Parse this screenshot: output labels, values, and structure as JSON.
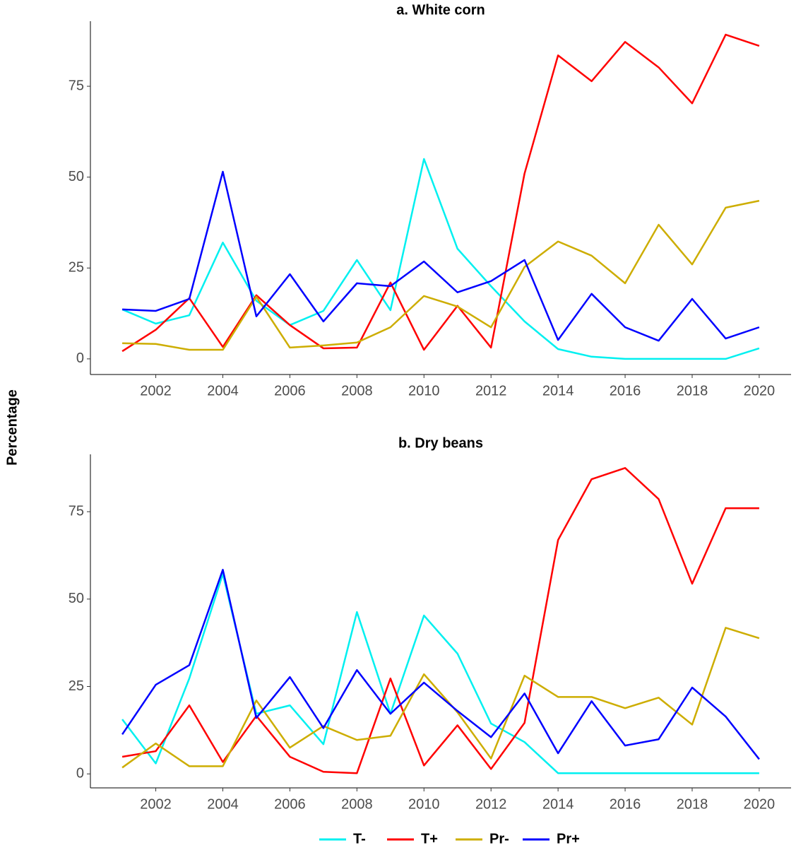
{
  "ylabel": "Percentage",
  "chart_data": [
    {
      "type": "line",
      "title": "a. White corn",
      "x": [
        2001,
        2002,
        2003,
        2004,
        2005,
        2006,
        2007,
        2008,
        2009,
        2010,
        2011,
        2012,
        2013,
        2014,
        2015,
        2016,
        2017,
        2018,
        2019,
        2020
      ],
      "xlim": [
        2000.05,
        2020.95
      ],
      "xticks": [
        2002,
        2004,
        2006,
        2008,
        2010,
        2012,
        2014,
        2016,
        2018,
        2020
      ],
      "ylim": [
        -4.3,
        92.9
      ],
      "yticks": [
        0,
        25,
        50,
        75
      ],
      "series": [
        {
          "name": "T-",
          "color": "#00f0f0",
          "values": [
            13.6,
            9.7,
            12,
            32,
            16,
            9.3,
            13.2,
            27.2,
            13.4,
            55,
            30.3,
            20,
            10.3,
            2.7,
            0.6,
            0,
            0,
            0,
            0,
            2.9
          ]
        },
        {
          "name": "T+",
          "color": "#ff0000",
          "values": [
            2.1,
            8,
            16.7,
            3.3,
            17.5,
            9.3,
            2.9,
            3.1,
            21,
            2.5,
            14.6,
            3.1,
            51,
            83.5,
            76.4,
            87.2,
            80.2,
            70.3,
            89.2,
            86.1
          ]
        },
        {
          "name": "Pr-",
          "color": "#cdad00",
          "values": [
            4.3,
            4.1,
            2.5,
            2.5,
            17.1,
            3.1,
            3.7,
            4.5,
            8.7,
            17.3,
            14.4,
            8.7,
            25.3,
            32.3,
            28.4,
            20.8,
            36.9,
            26,
            41.6,
            43.5
          ]
        },
        {
          "name": "Pr+",
          "color": "#0000ff",
          "values": [
            13.6,
            13.2,
            16.5,
            51.5,
            11.7,
            23.3,
            10.3,
            20.8,
            20,
            26.8,
            18.3,
            21.4,
            27.2,
            5.2,
            17.9,
            8.7,
            5,
            16.5,
            5.6,
            8.7
          ]
        }
      ]
    },
    {
      "type": "line",
      "title": "b. Dry beans",
      "x": [
        2001,
        2002,
        2003,
        2004,
        2005,
        2006,
        2007,
        2008,
        2009,
        2010,
        2011,
        2012,
        2013,
        2014,
        2015,
        2016,
        2017,
        2018,
        2019,
        2020
      ],
      "xlim": [
        2000.05,
        2020.95
      ],
      "xticks": [
        2002,
        2004,
        2006,
        2008,
        2010,
        2012,
        2014,
        2016,
        2018,
        2020
      ],
      "ylim": [
        -4,
        91.4
      ],
      "yticks": [
        0,
        25,
        50,
        75
      ],
      "series": [
        {
          "color": "#00f0f0",
          "values": [
            15.6,
            3,
            27.3,
            57.2,
            17.2,
            19.6,
            8.5,
            46.3,
            17.2,
            45.3,
            34.4,
            14.4,
            9.1,
            0.2,
            0.2,
            0.2,
            0.2,
            0.2,
            0.2,
            0.2
          ]
        },
        {
          "color": "#ff0000",
          "values": [
            4.9,
            6.5,
            19.6,
            3.4,
            16.6,
            4.9,
            0.6,
            0.2,
            27.3,
            2.4,
            13.9,
            1.4,
            14.6,
            66.9,
            84.3,
            87.5,
            78.6,
            54.4,
            76,
            76
          ]
        },
        {
          "color": "#cdad00",
          "values": [
            1.8,
            8.7,
            2.2,
            2.2,
            21,
            7.5,
            13.7,
            9.7,
            10.9,
            28.5,
            17.6,
            4.4,
            28.1,
            22,
            22,
            18.8,
            21.8,
            14.1,
            41.8,
            38.8
          ]
        },
        {
          "color": "#0000ff",
          "values": [
            11.3,
            25.5,
            31.1,
            58.4,
            16,
            27.7,
            13.1,
            29.7,
            17.2,
            26.1,
            18,
            10.5,
            23,
            5.9,
            20.8,
            8.1,
            9.9,
            24.7,
            16.4,
            4.2
          ]
        }
      ]
    }
  ]
}
